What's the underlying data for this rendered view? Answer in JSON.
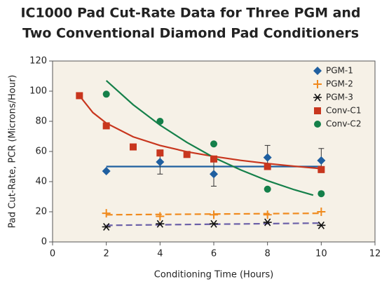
{
  "chart_data": {
    "type": "scatter",
    "title": [
      "IC1000 Pad Cut-Rate Data for Three PGM and",
      "Two Conventional Diamond Pad Conditioners"
    ],
    "x_label": "Conditioning Time (Hours)",
    "y_label": "Pad Cut-Rate, PCR (Microns/Hour)",
    "xlim": [
      0,
      12
    ],
    "xticks": [
      0,
      2,
      4,
      6,
      8,
      10,
      12
    ],
    "ylim": [
      0,
      120
    ],
    "yticks": [
      0,
      20,
      40,
      60,
      80,
      100,
      120
    ],
    "legend": "upper right",
    "series": [
      {
        "name": "PGM-1",
        "color": "#1f5fa0",
        "marker": "diamond",
        "x": [
          2,
          4,
          6,
          8,
          10
        ],
        "values": [
          47,
          53,
          45,
          56,
          54
        ],
        "errors": [
          null,
          8,
          8,
          8,
          8
        ],
        "trend": {
          "x": [
            2,
            10
          ],
          "values": [
            50,
            50
          ],
          "color": "#1f5fa0",
          "dashed": false
        }
      },
      {
        "name": "PGM-2",
        "color": "#f08a1e",
        "marker": "plus",
        "x": [
          2,
          4,
          6,
          8,
          10
        ],
        "values": [
          19,
          17,
          18,
          18,
          20
        ],
        "trend": {
          "x": [
            2,
            10
          ],
          "values": [
            18,
            19
          ],
          "color": "#f08a1e",
          "dashed": true
        }
      },
      {
        "name": "PGM-3",
        "color": "#111111",
        "marker": "asterisk",
        "x": [
          2,
          4,
          6,
          8,
          10
        ],
        "values": [
          10,
          12,
          12,
          13,
          11
        ],
        "trend": {
          "x": [
            2,
            10
          ],
          "values": [
            11,
            12.5
          ],
          "color": "#6a5fa8",
          "dashed": true
        }
      },
      {
        "name": "Conv-C1",
        "color": "#c8361e",
        "marker": "square",
        "x": [
          1,
          2,
          3,
          4,
          5,
          6,
          8,
          10
        ],
        "values": [
          97,
          77,
          63,
          59,
          58,
          55,
          50,
          48
        ],
        "trend": {
          "x": [
            1,
            1.5,
            2,
            3,
            4,
            5,
            6,
            7,
            8,
            9,
            10
          ],
          "values": [
            97,
            85.8,
            78.8,
            69.7,
            64,
            59.8,
            56.7,
            54.1,
            52,
            50.2,
            48.6
          ],
          "color": "#c8361e",
          "dashed": false
        }
      },
      {
        "name": "Conv-C2",
        "color": "#15804a",
        "marker": "circle",
        "x": [
          2,
          4,
          6,
          8,
          10
        ],
        "values": [
          98,
          80,
          65,
          35,
          32
        ],
        "trend": {
          "x": [
            2,
            3,
            4,
            5,
            6,
            7,
            8,
            9,
            9.7
          ],
          "values": [
            107,
            91,
            77.5,
            66,
            56,
            47.8,
            40.6,
            34.6,
            31
          ],
          "color": "#15804a",
          "dashed": false
        }
      }
    ]
  }
}
